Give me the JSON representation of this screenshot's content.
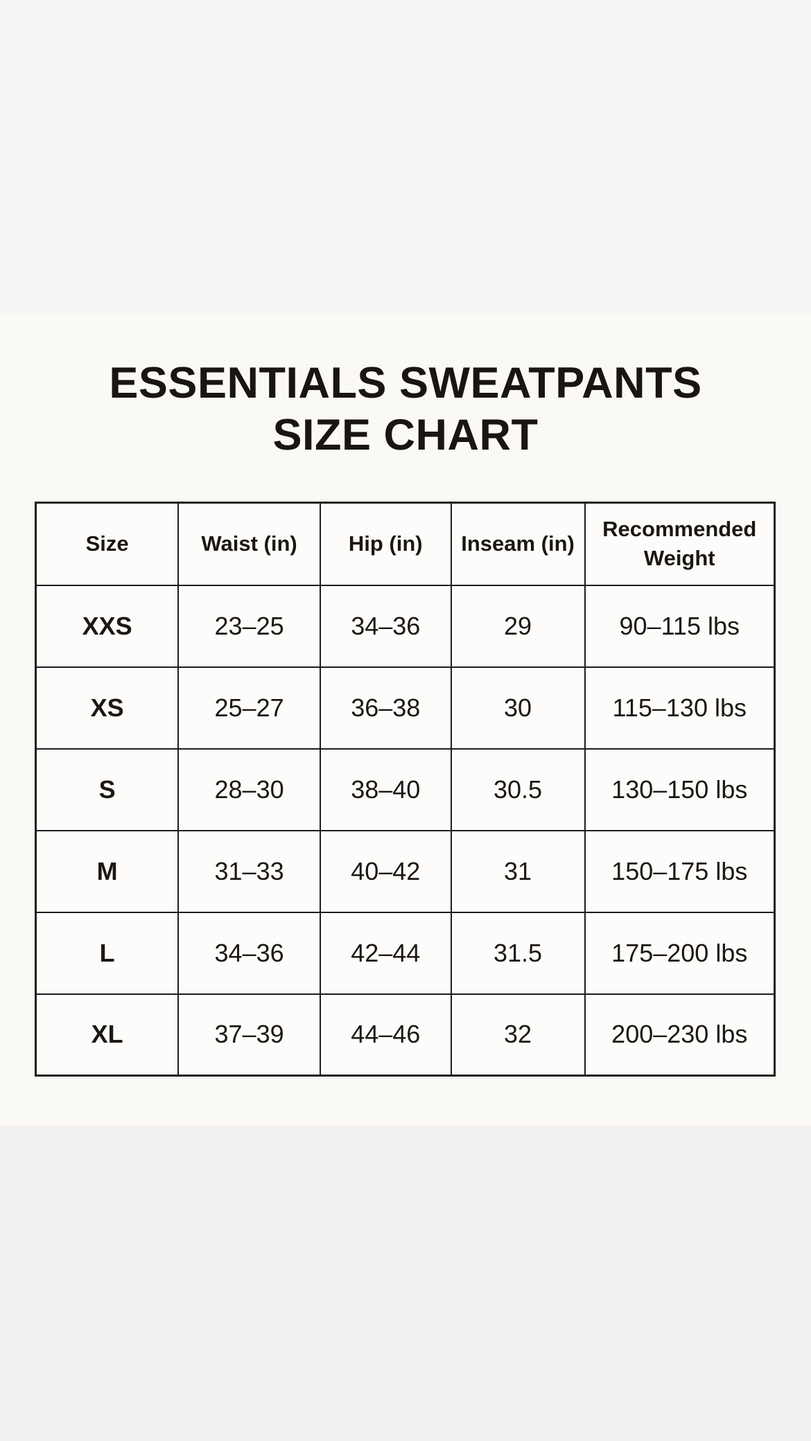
{
  "title": {
    "line1": "ESSENTIALS SWEATPANTS",
    "line2": "SIZE CHART"
  },
  "chart_data": {
    "type": "table",
    "title": "ESSENTIALS SWEATPANTS SIZE CHART",
    "columns": [
      "Size",
      "Waist (in)",
      "Hip (in)",
      "Inseam (in)",
      "Recommended Weight"
    ],
    "rows": [
      {
        "size": "XXS",
        "waist_in": "23–25",
        "hip_in": "34–36",
        "inseam_in": "29",
        "recommended_weight": "90–115 lbs"
      },
      {
        "size": "XS",
        "waist_in": "25–27",
        "hip_in": "36–38",
        "inseam_in": "30",
        "recommended_weight": "115–130 lbs"
      },
      {
        "size": "S",
        "waist_in": "28–30",
        "hip_in": "38–40",
        "inseam_in": "30.5",
        "recommended_weight": "130–150 lbs"
      },
      {
        "size": "M",
        "waist_in": "31–33",
        "hip_in": "40–42",
        "inseam_in": "31",
        "recommended_weight": "150–175 lbs"
      },
      {
        "size": "L",
        "waist_in": "34–36",
        "hip_in": "42–44",
        "inseam_in": "31.5",
        "recommended_weight": "175–200 lbs"
      },
      {
        "size": "XL",
        "waist_in": "37–39",
        "hip_in": "44–46",
        "inseam_in": "32",
        "recommended_weight": "200–230 lbs"
      }
    ]
  },
  "colors": {
    "band_top": "#f6f5f3",
    "band_content": "#fbf9f5",
    "band_bottom": "#f1f0ee",
    "table_border": "#1c1c1c",
    "cell_background": "#fdfcfa",
    "text": "#181512"
  }
}
